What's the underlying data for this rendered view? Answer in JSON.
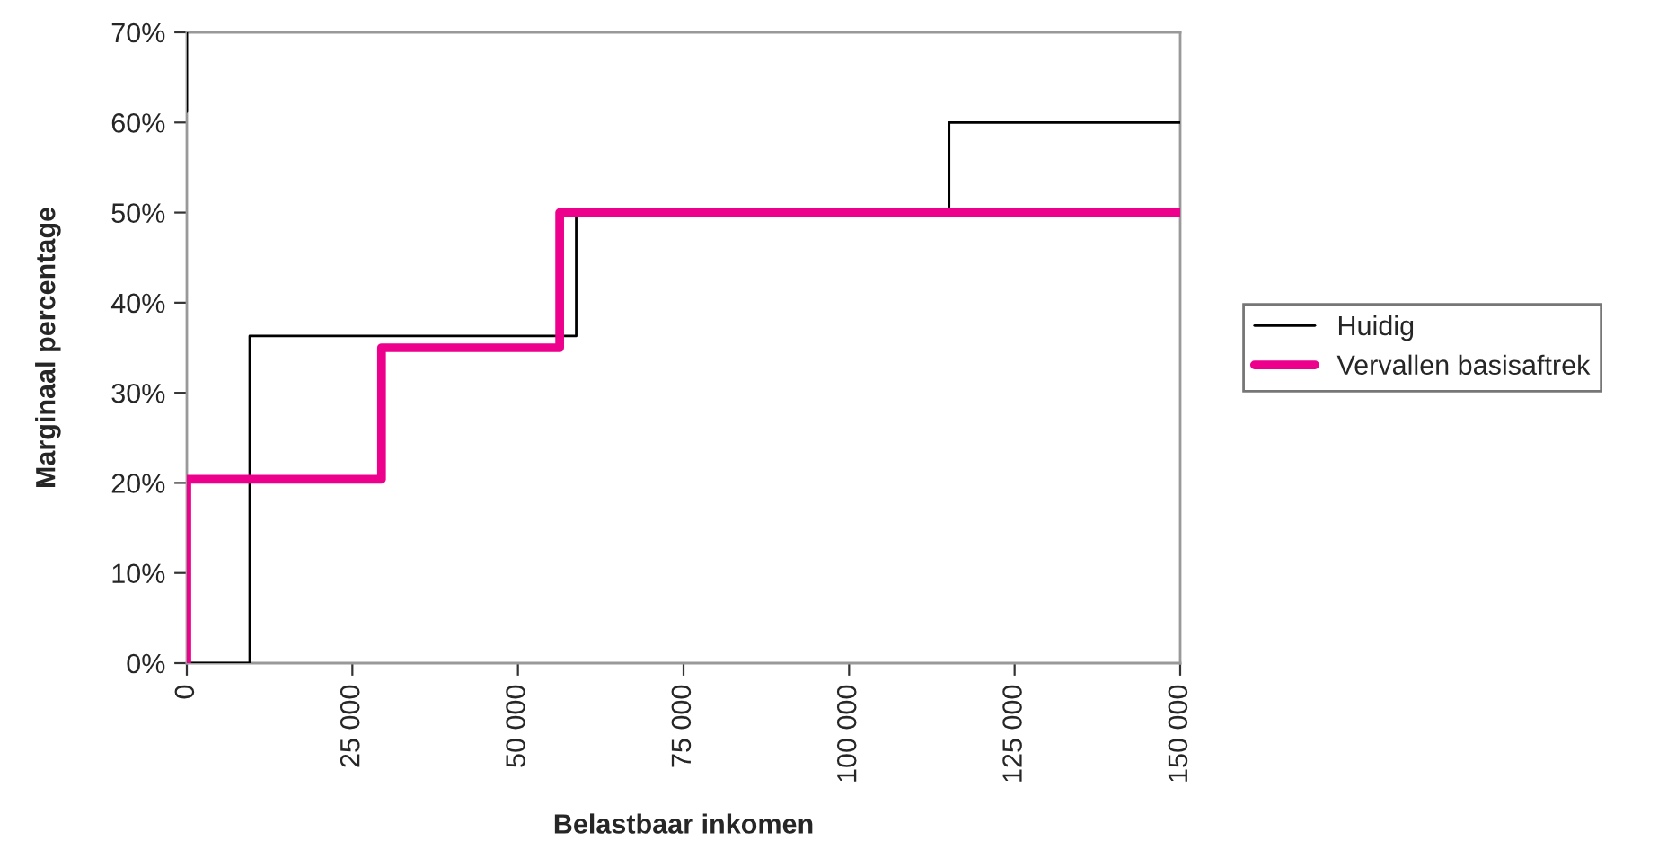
{
  "chart_data": {
    "type": "line",
    "xlabel": "Belastbaar inkomen",
    "ylabel": "Marginaal percentage",
    "series": [
      {
        "name": "Huidig",
        "color": "#000000",
        "x": [
          0,
          0,
          null,
          0,
          9500,
          9500,
          58800,
          58800,
          115100,
          115100,
          150000
        ],
        "values": [
          70,
          61.2,
          null,
          0,
          0,
          36.3,
          36.3,
          50,
          50,
          60,
          60
        ]
      },
      {
        "name": "Vervallen basisaftrek",
        "color": "#ec008c",
        "x": [
          0,
          0,
          29400,
          29400,
          56300,
          56300,
          150000
        ],
        "values": [
          0,
          20.4,
          20.4,
          35,
          35,
          50,
          50
        ]
      }
    ],
    "xlim": [
      0,
      150000
    ],
    "xticks": [
      0,
      {
        "value": 25000,
        "label": "25 000"
      },
      {
        "value": 50000,
        "label": "50 000"
      },
      {
        "value": 75000,
        "label": "75 000"
      },
      {
        "value": 100000,
        "label": "100 000"
      },
      {
        "value": 125000,
        "label": "125 000"
      },
      {
        "value": 150000,
        "label": "150 000"
      }
    ],
    "ylim": [
      0,
      70
    ],
    "yticks": [
      {
        "value": 0,
        "label": "0%"
      },
      {
        "value": 10,
        "label": "10%"
      },
      {
        "value": 20,
        "label": "20%"
      },
      {
        "value": 30,
        "label": "30%"
      },
      {
        "value": 40,
        "label": "40%"
      },
      {
        "value": 50,
        "label": "50%"
      },
      {
        "value": 60,
        "label": "60%"
      },
      {
        "value": 70,
        "label": "70%"
      }
    ],
    "grid": false,
    "legend": "right",
    "marker": "none",
    "line_style": "solid"
  }
}
